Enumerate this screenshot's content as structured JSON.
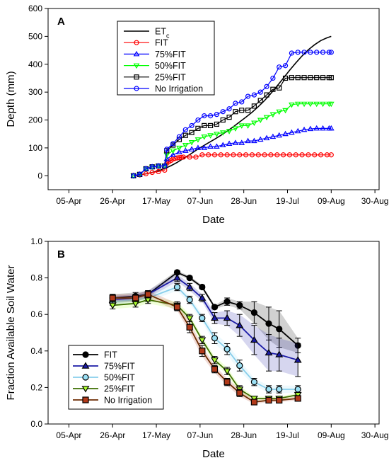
{
  "chart_data": [
    {
      "type": "line",
      "panel_label": "A",
      "xlabel": "Date",
      "ylabel": "Depth (mm)",
      "ylim": [
        -50,
        600
      ],
      "yticks": [
        0,
        100,
        200,
        300,
        400,
        500,
        600
      ],
      "xlim_days": [
        -10,
        149
      ],
      "xticks": [
        {
          "day": 0,
          "label": "05-Apr"
        },
        {
          "day": 21,
          "label": "26-Apr"
        },
        {
          "day": 42,
          "label": "17-May"
        },
        {
          "day": 63,
          "label": "07-Jun"
        },
        {
          "day": 84,
          "label": "28-Jun"
        },
        {
          "day": 105,
          "label": "19-Jul"
        },
        {
          "day": 126,
          "label": "09-Aug"
        },
        {
          "day": 147,
          "label": "30-Aug"
        }
      ],
      "legend": {
        "position": "top-center"
      },
      "series": [
        {
          "name": "ET",
          "subscript": "c",
          "color": "#000000",
          "marker": "none",
          "x": [
            31,
            34,
            37,
            40,
            43,
            46,
            49,
            52,
            55,
            58,
            61,
            64,
            67,
            70,
            73,
            76,
            79,
            82,
            85,
            88,
            91,
            94,
            97,
            100,
            103,
            106,
            109,
            112,
            115,
            118,
            121,
            124,
            126
          ],
          "y": [
            0,
            3,
            7,
            12,
            18,
            26,
            36,
            48,
            62,
            76,
            91,
            105,
            118,
            131,
            145,
            160,
            176,
            193,
            210,
            228,
            248,
            270,
            295,
            322,
            350,
            378,
            405,
            430,
            452,
            470,
            485,
            495,
            500
          ]
        },
        {
          "name": "FIT",
          "color": "#ff0000",
          "marker": "circle",
          "x": [
            31,
            34,
            37,
            40,
            43,
            46,
            47,
            48,
            49,
            50,
            51,
            52,
            53,
            54,
            55,
            58,
            61,
            64,
            67,
            70,
            73,
            76,
            79,
            82,
            85,
            88,
            91,
            94,
            97,
            100,
            103,
            106,
            109,
            112,
            115,
            118,
            121,
            124,
            126
          ],
          "y": [
            0,
            3,
            7,
            12,
            15,
            20,
            45,
            50,
            55,
            60,
            62,
            64,
            65,
            66,
            67,
            67,
            67,
            75,
            75,
            75,
            75,
            75,
            75,
            75,
            75,
            75,
            75,
            75,
            75,
            75,
            75,
            75,
            75,
            75,
            75,
            75,
            75,
            75,
            75
          ]
        },
        {
          "name": "75%FIT",
          "color": "#0000ff",
          "marker": "triangle",
          "x": [
            31,
            34,
            37,
            40,
            43,
            46,
            47,
            50,
            53,
            56,
            59,
            62,
            65,
            68,
            71,
            74,
            77,
            80,
            83,
            86,
            89,
            92,
            95,
            98,
            101,
            104,
            107,
            110,
            113,
            116,
            119,
            122,
            125,
            126
          ],
          "y": [
            0,
            5,
            25,
            32,
            35,
            35,
            60,
            75,
            85,
            90,
            95,
            100,
            100,
            105,
            105,
            110,
            115,
            118,
            118,
            125,
            125,
            130,
            135,
            140,
            145,
            150,
            155,
            160,
            165,
            168,
            170,
            170,
            170,
            170
          ]
        },
        {
          "name": "50%FIT",
          "color": "#00ff00",
          "marker": "triangle-down",
          "x": [
            31,
            34,
            37,
            40,
            43,
            46,
            47,
            50,
            53,
            56,
            59,
            62,
            65,
            68,
            71,
            74,
            77,
            80,
            83,
            86,
            89,
            92,
            95,
            98,
            101,
            104,
            107,
            110,
            113,
            116,
            119,
            122,
            125,
            126
          ],
          "y": [
            0,
            5,
            25,
            32,
            35,
            35,
            75,
            90,
            100,
            110,
            120,
            130,
            140,
            145,
            150,
            155,
            160,
            170,
            180,
            180,
            190,
            200,
            210,
            220,
            230,
            235,
            255,
            258,
            258,
            258,
            258,
            258,
            258,
            258
          ]
        },
        {
          "name": "25%FIT",
          "color": "#000000",
          "marker": "square",
          "x": [
            31,
            34,
            37,
            40,
            43,
            46,
            47,
            50,
            53,
            56,
            59,
            62,
            65,
            68,
            71,
            74,
            77,
            80,
            83,
            86,
            89,
            92,
            95,
            98,
            101,
            104,
            107,
            110,
            113,
            116,
            119,
            122,
            125,
            126
          ],
          "y": [
            0,
            5,
            25,
            32,
            35,
            35,
            90,
            110,
            130,
            145,
            155,
            170,
            180,
            180,
            185,
            200,
            210,
            230,
            235,
            235,
            250,
            270,
            290,
            310,
            315,
            350,
            352,
            352,
            352,
            352,
            352,
            352,
            352,
            352
          ]
        },
        {
          "name": "No Irrigation",
          "color": "#0000ff",
          "marker": "circle",
          "x": [
            31,
            34,
            37,
            40,
            43,
            46,
            47,
            50,
            53,
            56,
            59,
            62,
            65,
            68,
            71,
            74,
            77,
            80,
            83,
            86,
            89,
            92,
            95,
            98,
            101,
            104,
            107,
            110,
            113,
            116,
            119,
            122,
            125,
            126
          ],
          "y": [
            0,
            5,
            25,
            32,
            35,
            35,
            95,
            115,
            140,
            165,
            180,
            200,
            215,
            215,
            220,
            230,
            240,
            260,
            265,
            285,
            290,
            300,
            320,
            350,
            390,
            395,
            440,
            443,
            443,
            443,
            443,
            443,
            443,
            443
          ]
        }
      ]
    },
    {
      "type": "line",
      "panel_label": "B",
      "xlabel": "Date",
      "ylabel": "Fraction Available Soil Water",
      "ylim": [
        0.0,
        1.0
      ],
      "yticks": [
        0.0,
        0.2,
        0.4,
        0.6,
        0.8,
        1.0
      ],
      "xlim_days": [
        -10,
        149
      ],
      "xticks": [
        {
          "day": 0,
          "label": "05-Apr"
        },
        {
          "day": 21,
          "label": "26-Apr"
        },
        {
          "day": 42,
          "label": "17-May"
        },
        {
          "day": 63,
          "label": "07-Jun"
        },
        {
          "day": 84,
          "label": "28-Jun"
        },
        {
          "day": 105,
          "label": "19-Jul"
        },
        {
          "day": 126,
          "label": "09-Aug"
        },
        {
          "day": 147,
          "label": "30-Aug"
        }
      ],
      "legend": {
        "position": "bottom-left"
      },
      "x": [
        21,
        32,
        38,
        52,
        58,
        64,
        70,
        76,
        82,
        89,
        96,
        101,
        110
      ],
      "series": [
        {
          "name": "FIT",
          "color": "#000000",
          "fill": "#000000",
          "marker": "circle",
          "y": [
            0.69,
            0.7,
            0.71,
            0.83,
            0.8,
            0.75,
            0.64,
            0.67,
            0.65,
            0.61,
            0.55,
            0.52,
            0.43
          ],
          "err": [
            0.02,
            0.02,
            0.02,
            0.01,
            0.01,
            0.01,
            0.01,
            0.02,
            0.02,
            0.06,
            0.09,
            0.1,
            0.04
          ]
        },
        {
          "name": "75%FIT",
          "color": "#1a1aa6",
          "fill": "#1a1aa6",
          "marker": "triangle",
          "y": [
            0.68,
            0.69,
            0.71,
            0.8,
            0.75,
            0.69,
            0.58,
            0.58,
            0.54,
            0.46,
            0.39,
            0.38,
            0.35
          ],
          "err": [
            0.02,
            0.02,
            0.02,
            0.02,
            0.02,
            0.02,
            0.03,
            0.04,
            0.06,
            0.08,
            0.1,
            0.09,
            0.09
          ]
        },
        {
          "name": "50%FIT",
          "color": "#87ceeb",
          "fill": "#9be0f5",
          "marker": "circle",
          "y": [
            0.67,
            0.68,
            0.69,
            0.75,
            0.68,
            0.58,
            0.47,
            0.41,
            0.32,
            0.23,
            0.19,
            0.19,
            0.19
          ],
          "err": [
            0.02,
            0.02,
            0.02,
            0.02,
            0.02,
            0.02,
            0.03,
            0.03,
            0.03,
            0.02,
            0.02,
            0.02,
            0.02
          ]
        },
        {
          "name": "25%FIT",
          "color": "#3c6e00",
          "fill": "#adff2f",
          "marker": "triangle-down",
          "y": [
            0.65,
            0.66,
            0.68,
            0.65,
            0.58,
            0.46,
            0.35,
            0.29,
            0.19,
            0.14,
            0.14,
            0.14,
            0.16
          ],
          "err": [
            0.02,
            0.02,
            0.02,
            0.02,
            0.02,
            0.02,
            0.02,
            0.02,
            0.02,
            0.01,
            0.01,
            0.01,
            0.01
          ]
        },
        {
          "name": "No Irrigation",
          "color": "#6b2a00",
          "fill": "#b23a1a",
          "marker": "square",
          "y": [
            0.69,
            0.69,
            0.71,
            0.64,
            0.53,
            0.4,
            0.3,
            0.23,
            0.17,
            0.12,
            0.13,
            0.13,
            0.14
          ],
          "err": [
            0.02,
            0.02,
            0.02,
            0.02,
            0.03,
            0.03,
            0.02,
            0.02,
            0.02,
            0.01,
            0.01,
            0.01,
            0.01
          ]
        }
      ]
    }
  ]
}
